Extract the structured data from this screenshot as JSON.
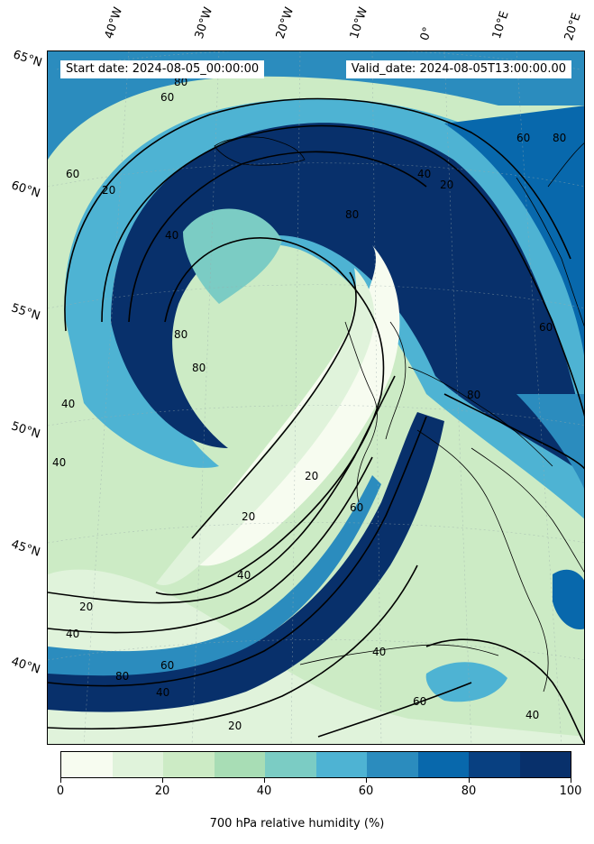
{
  "header": {
    "start_date": "Start date: 2024-08-05_00:00:00",
    "valid_date": "Valid_date: 2024-08-05T13:00:00.00"
  },
  "longitude_labels": [
    "40°W",
    "30°W",
    "20°W",
    "10°W",
    "0°",
    "10°E",
    "20°E"
  ],
  "latitude_labels": [
    "65°N",
    "60°N",
    "55°N",
    "50°N",
    "45°N",
    "40°N"
  ],
  "contour_labels": [
    "80",
    "60",
    "20",
    "40",
    "80",
    "60",
    "80",
    "80",
    "40",
    "60",
    "20",
    "40",
    "20",
    "40",
    "20",
    "40",
    "80",
    "60",
    "40",
    "20",
    "60",
    "80",
    "40",
    "60",
    "40",
    "20",
    "40",
    "80",
    "60"
  ],
  "colorbar": {
    "label": "700 hPa relative humidity (%)",
    "ticks": [
      "0",
      "20",
      "40",
      "60",
      "80",
      "100"
    ],
    "colors": [
      "#f7fcf0",
      "#e0f3db",
      "#ccebc5",
      "#a8ddb5",
      "#7bccc4",
      "#4eb3d3",
      "#2b8cbe",
      "#0868ac",
      "#084081",
      "#08306b"
    ]
  }
}
